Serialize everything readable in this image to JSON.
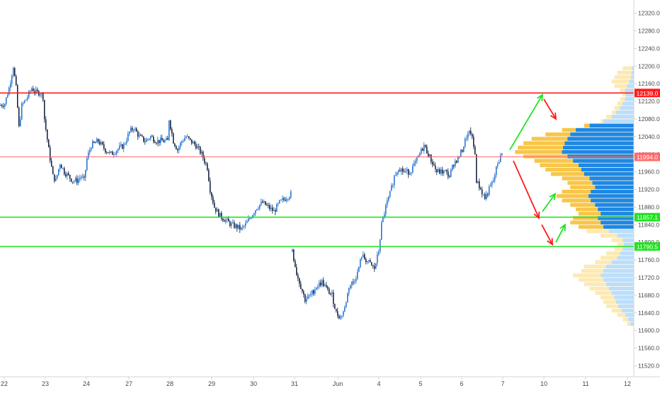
{
  "chart_data": {
    "type": "candlestick",
    "ylim": [
      11495,
      12350
    ],
    "y_ticks": [
      12320,
      12280,
      12240,
      12200,
      12160,
      12120,
      12080,
      12040,
      12000,
      11960,
      11920,
      11880,
      11840,
      11800,
      11760,
      11720,
      11680,
      11640,
      11600,
      11560,
      11520
    ],
    "y_tick_labels": [
      "12320.0",
      "12280.0",
      "12240.0",
      "12200.0",
      "12160.0",
      "12120.0",
      "12080.0",
      "12040.0",
      "12000.0",
      "11960.0",
      "11920.0",
      "11880.0",
      "11840.0",
      "11800.0",
      "11760.0",
      "11720.0",
      "11680.0",
      "11640.0",
      "11600.0",
      "11560.0",
      "11520.0"
    ],
    "x_tick_labels": [
      "22",
      "23",
      "24",
      "27",
      "28",
      "29",
      "30",
      "31",
      "Jun",
      "4",
      "5",
      "6",
      "7",
      "10",
      "11",
      "12"
    ],
    "price_path": [
      [
        0,
        12110
      ],
      [
        8,
        12115
      ],
      [
        14,
        12150
      ],
      [
        20,
        12200
      ],
      [
        24,
        12150
      ],
      [
        28,
        12060
      ],
      [
        32,
        12110
      ],
      [
        36,
        12120
      ],
      [
        40,
        12130
      ],
      [
        46,
        12150
      ],
      [
        52,
        12140
      ],
      [
        58,
        12140
      ],
      [
        62,
        12130
      ],
      [
        64,
        12080
      ],
      [
        70,
        12010
      ],
      [
        76,
        11950
      ],
      [
        80,
        11940
      ],
      [
        86,
        11980
      ],
      [
        92,
        11960
      ],
      [
        98,
        11950
      ],
      [
        104,
        11940
      ],
      [
        110,
        11940
      ],
      [
        116,
        11950
      ],
      [
        120,
        11940
      ],
      [
        124,
        11990
      ],
      [
        130,
        12020
      ],
      [
        140,
        12030
      ],
      [
        150,
        12010
      ],
      [
        158,
        12000
      ],
      [
        166,
        12010
      ],
      [
        176,
        12020
      ],
      [
        184,
        12050
      ],
      [
        190,
        12060
      ],
      [
        198,
        12040
      ],
      [
        206,
        12030
      ],
      [
        214,
        12040
      ],
      [
        222,
        12030
      ],
      [
        232,
        12030
      ],
      [
        238,
        12030
      ],
      [
        240,
        12080
      ],
      [
        246,
        12030
      ],
      [
        252,
        12010
      ],
      [
        258,
        12030
      ],
      [
        264,
        12040
      ],
      [
        270,
        12030
      ],
      [
        278,
        12020
      ],
      [
        286,
        12000
      ],
      [
        294,
        11970
      ],
      [
        298,
        11920
      ],
      [
        304,
        11880
      ],
      [
        312,
        11860
      ],
      [
        320,
        11850
      ],
      [
        328,
        11840
      ],
      [
        336,
        11835
      ],
      [
        342,
        11830
      ],
      [
        348,
        11840
      ],
      [
        356,
        11860
      ],
      [
        364,
        11880
      ],
      [
        372,
        11890
      ],
      [
        380,
        11880
      ],
      [
        388,
        11870
      ],
      [
        396,
        11890
      ],
      [
        404,
        11900
      ],
      [
        412,
        11910
      ],
      [
        414,
        11780
      ],
      [
        420,
        11730
      ],
      [
        426,
        11700
      ],
      [
        432,
        11670
      ],
      [
        440,
        11680
      ],
      [
        448,
        11700
      ],
      [
        456,
        11710
      ],
      [
        464,
        11690
      ],
      [
        470,
        11680
      ],
      [
        476,
        11640
      ],
      [
        482,
        11630
      ],
      [
        488,
        11650
      ],
      [
        494,
        11700
      ],
      [
        500,
        11710
      ],
      [
        506,
        11730
      ],
      [
        512,
        11770
      ],
      [
        518,
        11760
      ],
      [
        524,
        11750
      ],
      [
        530,
        11740
      ],
      [
        536,
        11780
      ],
      [
        540,
        11840
      ],
      [
        546,
        11880
      ],
      [
        552,
        11910
      ],
      [
        558,
        11950
      ],
      [
        564,
        11970
      ],
      [
        572,
        11960
      ],
      [
        580,
        11960
      ],
      [
        588,
        11980
      ],
      [
        594,
        12000
      ],
      [
        600,
        12020
      ],
      [
        606,
        12000
      ],
      [
        612,
        11980
      ],
      [
        618,
        11960
      ],
      [
        624,
        11960
      ],
      [
        630,
        11960
      ],
      [
        636,
        11950
      ],
      [
        642,
        11980
      ],
      [
        648,
        11990
      ],
      [
        654,
        12010
      ],
      [
        660,
        12040
      ],
      [
        666,
        12050
      ],
      [
        672,
        12000
      ],
      [
        674,
        11940
      ],
      [
        680,
        11920
      ],
      [
        686,
        11900
      ],
      [
        692,
        11920
      ],
      [
        698,
        11940
      ],
      [
        704,
        11980
      ],
      [
        710,
        12000
      ]
    ],
    "horizontal_lines": [
      {
        "value": 12139.0,
        "color": "#ff1c1c",
        "label": "12139.0"
      },
      {
        "value": 11994.0,
        "color": "#ff6b6b",
        "label": "11994.0"
      },
      {
        "value": 11857.1,
        "color": "#22e322",
        "label": "11857.1"
      },
      {
        "value": 11790.5,
        "color": "#22e322",
        "label": "11790.5"
      }
    ],
    "volume_profile": {
      "bins": [
        [
          12195,
          20,
          3
        ],
        [
          12185,
          30,
          4
        ],
        [
          12175,
          35,
          5
        ],
        [
          12165,
          40,
          8
        ],
        [
          12155,
          35,
          12
        ],
        [
          12145,
          25,
          16
        ],
        [
          12135,
          20,
          14
        ],
        [
          12125,
          25,
          16
        ],
        [
          12115,
          30,
          20
        ],
        [
          12105,
          35,
          25
        ],
        [
          12095,
          40,
          32
        ],
        [
          12085,
          50,
          40
        ],
        [
          12075,
          60,
          55
        ],
        [
          12065,
          90,
          80
        ],
        [
          12055,
          130,
          105
        ],
        [
          12045,
          160,
          115
        ],
        [
          12035,
          185,
          120
        ],
        [
          12025,
          200,
          125
        ],
        [
          12015,
          210,
          128
        ],
        [
          12005,
          215,
          130
        ],
        [
          11995,
          200,
          120
        ],
        [
          11985,
          180,
          110
        ],
        [
          11975,
          170,
          100
        ],
        [
          11965,
          160,
          95
        ],
        [
          11955,
          150,
          90
        ],
        [
          11945,
          130,
          80
        ],
        [
          11935,
          120,
          75
        ],
        [
          11925,
          115,
          70
        ],
        [
          11915,
          130,
          78
        ],
        [
          11905,
          140,
          82
        ],
        [
          11895,
          130,
          78
        ],
        [
          11885,
          115,
          70
        ],
        [
          11875,
          105,
          65
        ],
        [
          11865,
          100,
          60
        ],
        [
          11855,
          110,
          65
        ],
        [
          11845,
          115,
          60
        ],
        [
          11835,
          100,
          55
        ],
        [
          11825,
          85,
          45
        ],
        [
          11815,
          60,
          30
        ],
        [
          11805,
          40,
          20
        ],
        [
          11795,
          30,
          18
        ],
        [
          11785,
          35,
          20
        ],
        [
          11775,
          50,
          25
        ],
        [
          11765,
          60,
          30
        ],
        [
          11755,
          70,
          40
        ],
        [
          11745,
          90,
          50
        ],
        [
          11735,
          95,
          55
        ],
        [
          11725,
          110,
          60
        ],
        [
          11715,
          100,
          55
        ],
        [
          11705,
          90,
          50
        ],
        [
          11695,
          80,
          45
        ],
        [
          11685,
          70,
          40
        ],
        [
          11675,
          60,
          35
        ],
        [
          11665,
          55,
          32
        ],
        [
          11655,
          50,
          28
        ],
        [
          11645,
          40,
          22
        ],
        [
          11635,
          30,
          15
        ],
        [
          11625,
          20,
          10
        ],
        [
          11615,
          12,
          6
        ]
      ],
      "value_area": [
        11830,
        12070
      ]
    },
    "arrows": [
      {
        "from": [
          720,
          12010
        ],
        "to": [
          766,
          12135
        ],
        "color": "#22e322"
      },
      {
        "from": [
          768,
          12125
        ],
        "to": [
          785,
          12080
        ],
        "color": "#ff1c1c"
      },
      {
        "from": [
          725,
          11985
        ],
        "to": [
          761,
          11855
        ],
        "color": "#ff1c1c"
      },
      {
        "from": [
          766,
          11870
        ],
        "to": [
          784,
          11910
        ],
        "color": "#22e322"
      },
      {
        "from": [
          765,
          11840
        ],
        "to": [
          780,
          11795
        ],
        "color": "#ff1c1c"
      },
      {
        "from": [
          785,
          11800
        ],
        "to": [
          798,
          11840
        ],
        "color": "#22e322"
      }
    ],
    "colors": {
      "candle_up": "#1e6ecf",
      "candle_down": "#0b1b3a",
      "profile_blue": "#1e88e5",
      "profile_blue_light": "#bbdefb",
      "profile_orange": "#f7c64a",
      "profile_orange_light": "#fde9b3",
      "axis_text": "#4a4a4a",
      "axis_line": "#d6d6d6"
    }
  }
}
